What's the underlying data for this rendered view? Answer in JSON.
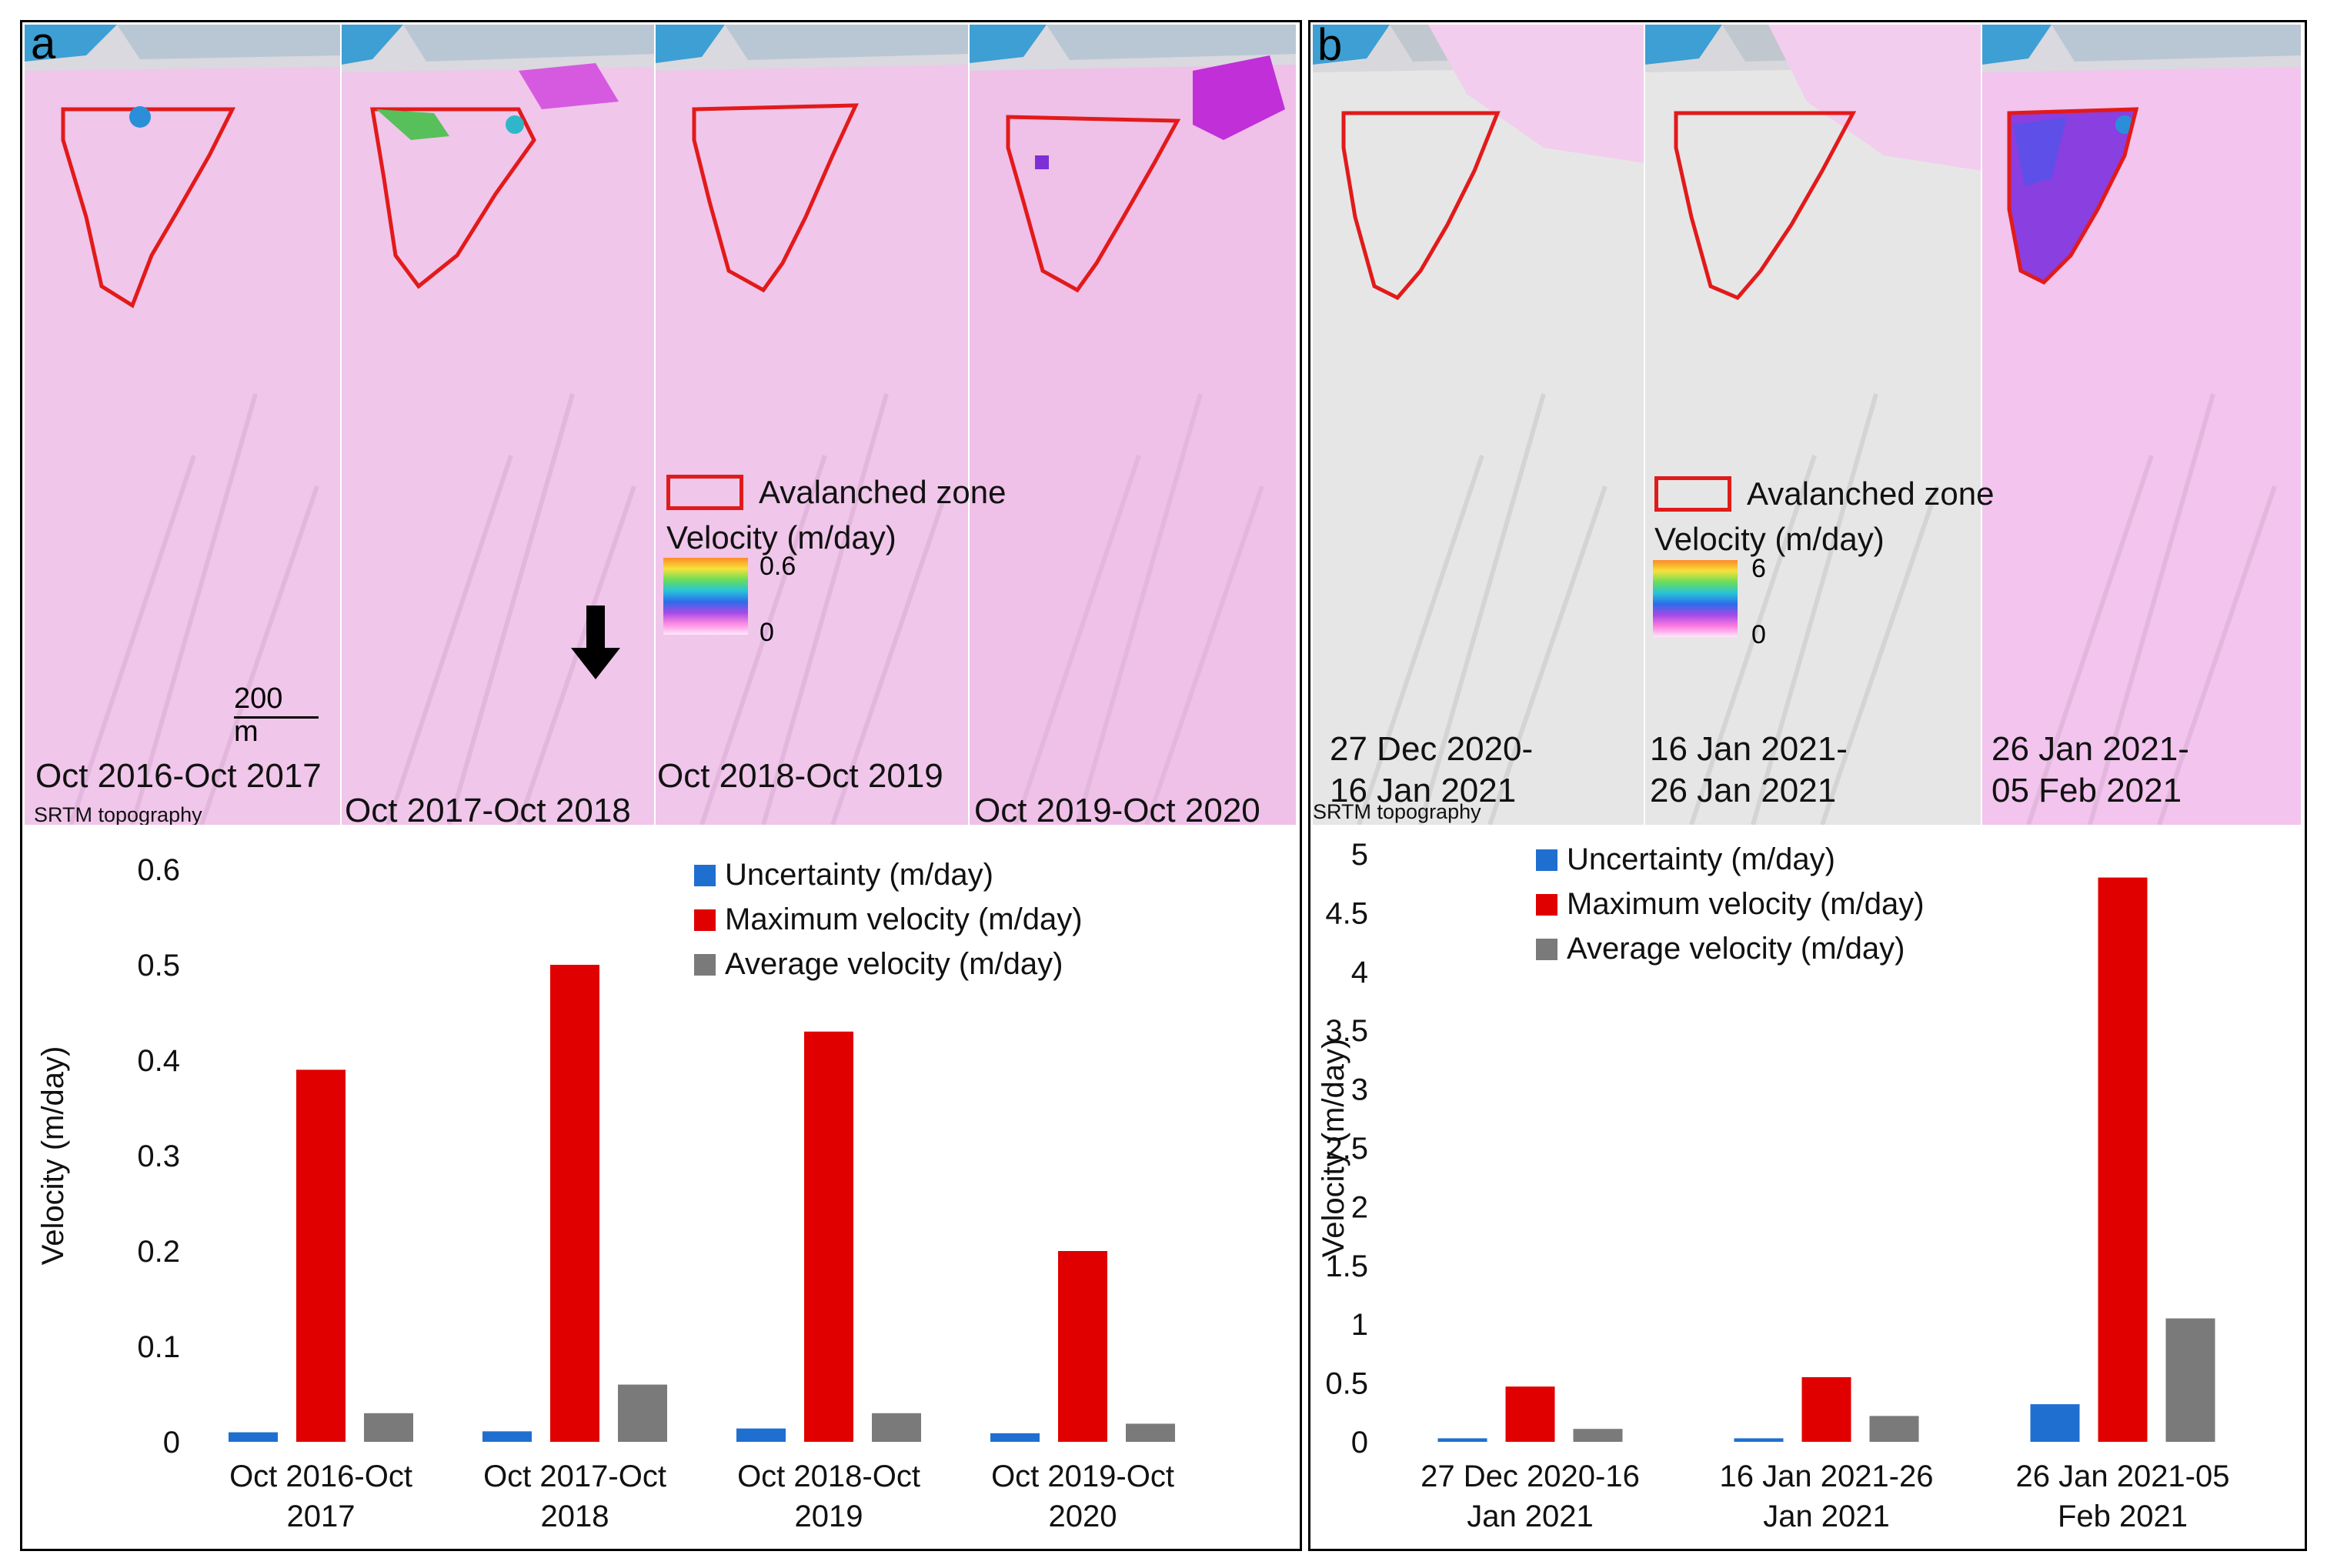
{
  "panels": [
    {
      "letter": "a",
      "source": "SRTM topography",
      "scale_bar": "200 m",
      "north_label": "N",
      "tiles": [
        {
          "label": "Oct 2016-Oct 2017",
          "color": "#f0c6ea"
        },
        {
          "label": "Oct 2017-Oct 2018",
          "color": "#f0c6ea"
        },
        {
          "label": "Oct 2018-Oct 2019",
          "color": "#f0c6ea"
        },
        {
          "label": "Oct 2019-Oct 2020",
          "color": "#efc0e8"
        }
      ],
      "legend": {
        "zone_label": "Avalanched zone",
        "velocity_title": "Velocity (m/day)",
        "cbar_max": "0.6",
        "cbar_min": "0"
      }
    },
    {
      "letter": "b",
      "source": "SRTM topography",
      "tiles": [
        {
          "label_line1": "27 Dec 2020-",
          "label_line2": "16 Jan 2021",
          "color": "#e6e6e6"
        },
        {
          "label_line1": "16 Jan 2021-",
          "label_line2": "26 Jan 2021",
          "color": "#e6e6e6"
        },
        {
          "label_line1": "26 Jan 2021-",
          "label_line2": "05 Feb 2021",
          "color": "#f2c4ee"
        }
      ],
      "legend": {
        "zone_label": "Avalanched zone",
        "velocity_title": "Velocity (m/day)",
        "cbar_max": "6",
        "cbar_min": "0"
      }
    }
  ],
  "chart_data": [
    {
      "type": "bar",
      "panel": "a",
      "title": "",
      "xlabel": "",
      "ylabel": "Velocity (m/day)",
      "ylim": [
        0,
        0.6
      ],
      "yticks": [
        0,
        0.1,
        0.2,
        0.3,
        0.4,
        0.5,
        0.6
      ],
      "ytick_labels": [
        "0",
        "0.1",
        "0.2",
        "0.3",
        "0.4",
        "0.5",
        "0.6"
      ],
      "categories": [
        [
          "Oct 2016-Oct",
          "2017"
        ],
        [
          "Oct 2017-Oct",
          "2018"
        ],
        [
          "Oct 2018-Oct",
          "2019"
        ],
        [
          "Oct 2019-Oct",
          "2020"
        ]
      ],
      "series": [
        {
          "name": "Uncertainty (m/day)",
          "color": "#1f6fd0",
          "values": [
            0.01,
            0.011,
            0.014,
            0.009
          ]
        },
        {
          "name": "Maximum velocity (m/day)",
          "color": "#e00000",
          "values": [
            0.39,
            0.5,
            0.43,
            0.2
          ]
        },
        {
          "name": "Average velocity (m/day)",
          "color": "#7a7a7a",
          "values": [
            0.03,
            0.06,
            0.03,
            0.019
          ]
        }
      ],
      "legend_position": "top-right",
      "grid": false
    },
    {
      "type": "bar",
      "panel": "b",
      "title": "",
      "xlabel": "",
      "ylabel": "Velocity (m/day)",
      "ylim": [
        0,
        5
      ],
      "yticks": [
        0,
        0.5,
        1,
        1.5,
        2,
        2.5,
        3,
        3.5,
        4,
        4.5,
        5
      ],
      "ytick_labels": [
        "0",
        "0.5",
        "1",
        "1.5",
        "2",
        "2.5",
        "3",
        "3.5",
        "4",
        "4.5",
        "5"
      ],
      "categories": [
        [
          "27 Dec 2020-16",
          "Jan 2021"
        ],
        [
          "16 Jan 2021-26",
          "Jan 2021"
        ],
        [
          "26 Jan 2021-05",
          "Feb 2021"
        ]
      ],
      "series": [
        {
          "name": "Uncertainty (m/day)",
          "color": "#1f6fd0",
          "values": [
            0.03,
            0.03,
            0.32
          ]
        },
        {
          "name": "Maximum velocity (m/day)",
          "color": "#e00000",
          "values": [
            0.47,
            0.55,
            4.8
          ]
        },
        {
          "name": "Average velocity (m/day)",
          "color": "#7a7a7a",
          "values": [
            0.11,
            0.22,
            1.05
          ]
        }
      ],
      "legend_position": "top-left",
      "grid": false
    }
  ]
}
